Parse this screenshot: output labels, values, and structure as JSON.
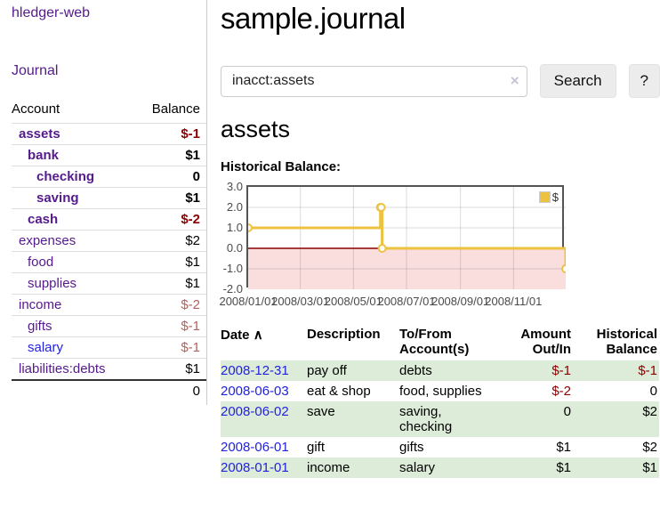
{
  "app": {
    "title": "hledger-web",
    "nav_journal": "Journal"
  },
  "colors": {
    "link_visited_purple": "#551a8b",
    "link_blue": "#2222dd",
    "negative_strong": "#8b0000",
    "negative_soft": "#ae6460",
    "row_stripe_green": "#ddecd8",
    "chart_series_gold": "#edc240",
    "chart_negative_fill": "#fadddd",
    "chart_zero_line": "#8b0000"
  },
  "sidebar": {
    "header": {
      "account": "Account",
      "balance": "Balance"
    },
    "accounts": [
      {
        "name": "assets",
        "balance": "$-1",
        "level": 1,
        "strong": true,
        "neg": true,
        "blue": false
      },
      {
        "name": "bank",
        "balance": "$1",
        "level": 2,
        "strong": true,
        "neg": false,
        "blue": false
      },
      {
        "name": "checking",
        "balance": "0",
        "level": 3,
        "strong": true,
        "neg": false,
        "blue": false
      },
      {
        "name": "saving",
        "balance": "$1",
        "level": 3,
        "strong": true,
        "neg": false,
        "blue": false
      },
      {
        "name": "cash",
        "balance": "$-2",
        "level": 2,
        "strong": true,
        "neg": true,
        "blue": false
      },
      {
        "name": "expenses",
        "balance": "$2",
        "level": 1,
        "strong": false,
        "neg": false,
        "blue": false
      },
      {
        "name": "food",
        "balance": "$1",
        "level": 2,
        "strong": false,
        "neg": false,
        "blue": false
      },
      {
        "name": "supplies",
        "balance": "$1",
        "level": 2,
        "strong": false,
        "neg": false,
        "blue": false
      },
      {
        "name": "income",
        "balance": "$-2",
        "level": 1,
        "strong": false,
        "neg": true,
        "blue": false
      },
      {
        "name": "gifts",
        "balance": "$-1",
        "level": 2,
        "strong": false,
        "neg": true,
        "blue": false
      },
      {
        "name": "salary",
        "balance": "$-1",
        "level": 2,
        "strong": false,
        "neg": true,
        "blue": true
      },
      {
        "name": "liabilities:debts",
        "balance": "$1",
        "level": 1,
        "strong": false,
        "neg": false,
        "blue": false
      }
    ],
    "total": "0"
  },
  "header": {
    "title": "sample.journal"
  },
  "search": {
    "value": "inacct:assets",
    "clear_icon": "×",
    "button": "Search",
    "help_button": "?"
  },
  "account_page": {
    "heading": "assets",
    "chart_label": "Historical Balance:"
  },
  "chart_data": {
    "type": "line",
    "step": true,
    "title": "Historical Balance",
    "series_label": "$",
    "series": [
      {
        "name": "$",
        "color": "#edc240",
        "points": [
          [
            "2008-01-01",
            1
          ],
          [
            "2008-06-01",
            2
          ],
          [
            "2008-06-02",
            2
          ],
          [
            "2008-06-03",
            0
          ],
          [
            "2008-12-31",
            -1
          ]
        ]
      }
    ],
    "x_start": "2008-01-01",
    "x_end": "2008-12-31",
    "x_ticks": [
      "2008/01/01",
      "2008/03/01",
      "2008/05/01",
      "2008/07/01",
      "2008/09/01",
      "2008/11/01"
    ],
    "y_ticks": [
      "3.0",
      "2.0",
      "1.0",
      "0.0",
      "-1.0",
      "-2.0"
    ],
    "ylim": [
      -2,
      3
    ],
    "grid": true,
    "legend_position": "top-right",
    "negative_fill": "#fadddd",
    "zero_line_color": "#8b0000"
  },
  "register": {
    "sort_icon": "∧",
    "columns": [
      {
        "label": "Date"
      },
      {
        "label": "Description"
      },
      {
        "label": "To/From Account(s)"
      },
      {
        "label": "Amount Out/In"
      },
      {
        "label": "Historical Balance"
      }
    ],
    "rows": [
      {
        "date": "2008-12-31",
        "description": "pay off",
        "accounts": "debts",
        "amount": "$-1",
        "balance": "$-1"
      },
      {
        "date": "2008-06-03",
        "description": "eat & shop",
        "accounts": "food, supplies",
        "amount": "$-2",
        "balance": "0"
      },
      {
        "date": "2008-06-02",
        "description": "save",
        "accounts": "saving, checking",
        "amount": "0",
        "balance": "$2"
      },
      {
        "date": "2008-06-01",
        "description": "gift",
        "accounts": "gifts",
        "amount": "$1",
        "balance": "$2"
      },
      {
        "date": "2008-01-01",
        "description": "income",
        "accounts": "salary",
        "amount": "$1",
        "balance": "$1"
      }
    ]
  }
}
